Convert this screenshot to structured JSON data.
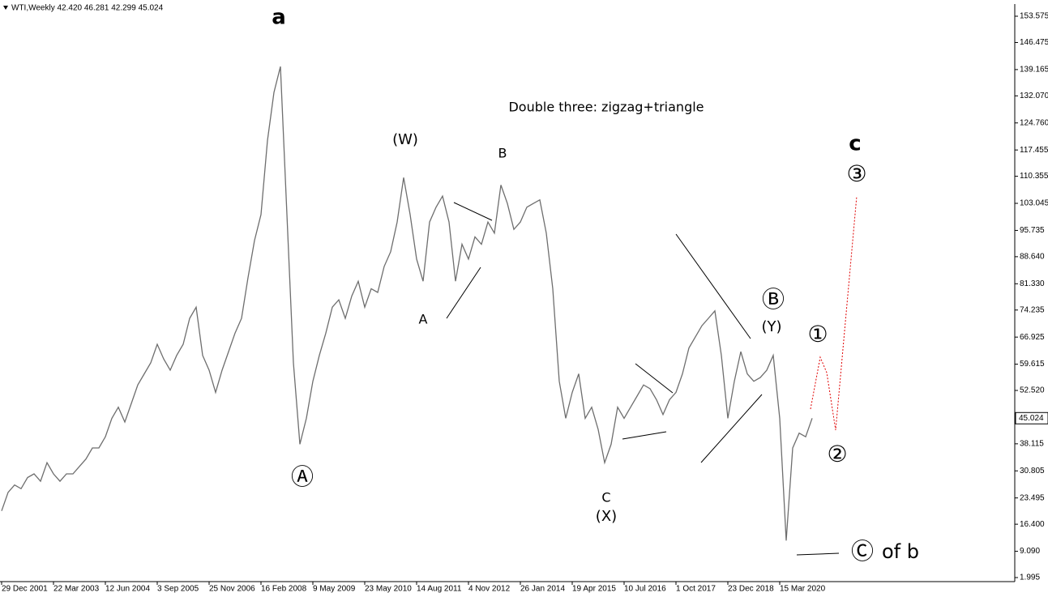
{
  "chart_data": {
    "type": "line",
    "header": "WTI,Weekly  42.420 46.281 42.299 45.024",
    "title": "Double three: zigzag+triangle",
    "annotations": [
      "a",
      "Ⓐ",
      "(W)",
      "B",
      "A",
      "C",
      "(X)",
      "Ⓑ",
      "(Y)",
      "①",
      "②",
      "③",
      "c",
      "Ⓒ",
      "of b"
    ],
    "categories": [
      "29 Dec 2001",
      null,
      null,
      null,
      null,
      null,
      null,
      null,
      "22 Mar 2003",
      null,
      null,
      null,
      null,
      null,
      null,
      null,
      "12 Jun 2004",
      null,
      null,
      null,
      null,
      null,
      null,
      null,
      "3 Sep 2005",
      null,
      null,
      null,
      null,
      null,
      null,
      null,
      "25 Nov 2006",
      null,
      null,
      null,
      null,
      null,
      null,
      null,
      "16 Feb 2008",
      null,
      null,
      null,
      null,
      null,
      null,
      null,
      "9 May 2009",
      null,
      null,
      null,
      null,
      null,
      null,
      null,
      "23 May 2010",
      null,
      null,
      null,
      null,
      null,
      null,
      null,
      "14 Aug 2011",
      null,
      null,
      null,
      null,
      null,
      null,
      null,
      "4 Nov 2012",
      null,
      null,
      null,
      null,
      null,
      null,
      null,
      "26 Jan 2014",
      null,
      null,
      null,
      null,
      null,
      null,
      null,
      "19 Apr 2015",
      null,
      null,
      null,
      null,
      null,
      null,
      null,
      "10 Jul 2016",
      null,
      null,
      null,
      null,
      null,
      null,
      null,
      "1 Oct 2017",
      null,
      null,
      null,
      null,
      null,
      null,
      null,
      "23 Dec 2018",
      null,
      null,
      null,
      null,
      null,
      null,
      null,
      "15 Mar 2020",
      null,
      null,
      null,
      null,
      null
    ],
    "values": [
      20,
      25,
      27,
      26,
      29,
      30,
      28,
      33,
      30,
      28,
      30,
      30,
      32,
      34,
      37,
      37,
      40,
      45,
      48,
      44,
      49,
      54,
      57,
      60,
      65,
      61,
      58,
      62,
      65,
      72,
      75,
      62,
      58,
      52,
      58,
      63,
      68,
      72,
      83,
      93,
      100,
      120,
      133,
      140,
      100,
      60,
      38,
      45,
      55,
      62,
      68,
      75,
      77,
      72,
      78,
      82,
      75,
      80,
      79,
      86,
      90,
      98,
      110,
      100,
      88,
      82,
      98,
      102,
      105,
      98,
      82,
      92,
      88,
      94,
      92,
      98,
      95,
      108,
      103,
      96,
      98,
      102,
      103,
      104,
      95,
      80,
      55,
      45,
      52,
      57,
      45,
      48,
      42,
      33,
      38,
      48,
      45,
      48,
      51,
      54,
      53,
      50,
      46,
      50,
      52,
      57,
      64,
      67,
      70,
      72,
      74,
      62,
      45,
      55,
      63,
      57,
      55,
      56,
      58,
      62,
      45,
      12,
      37,
      41,
      40,
      45.024
    ],
    "color": "#6e6e6e",
    "last_price": 45.024,
    "ylim": [
      0.9,
      156.86
    ],
    "yticks": [
      {
        "value": 1.995,
        "label": "1.995"
      },
      {
        "value": 9.09,
        "label": "9.090"
      },
      {
        "value": 16.4,
        "label": "16.400"
      },
      23.495,
      30.805,
      38.115,
      {
        "value": 52.52,
        "label": "52.520"
      },
      59.615,
      66.925,
      74.235,
      {
        "value": 81.33,
        "label": "81.330"
      },
      {
        "value": 88.64,
        "label": "88.640"
      },
      95.735,
      103.045,
      110.355,
      117.455,
      {
        "value": 124.76,
        "label": "124.760"
      },
      {
        "value": 132.07,
        "label": "132.070"
      },
      139.165,
      146.475,
      153.575
    ],
    "grid": false
  }
}
